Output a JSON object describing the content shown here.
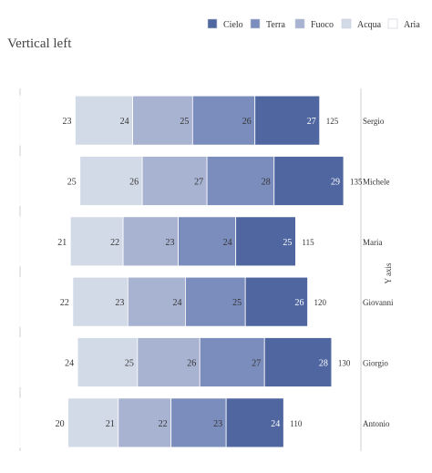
{
  "title": "Vertical left",
  "chart_data": {
    "type": "bar",
    "orientation": "horizontal-stacked",
    "title": "Vertical left",
    "ylabel": "Y axis",
    "ylabel_position": "right",
    "legend_position": "top-right",
    "categories": [
      "Sergio",
      "Michele",
      "Maria",
      "Giovanni",
      "Giorgio",
      "Antonio"
    ],
    "series": [
      {
        "name": "Aria",
        "color": "#ffffff",
        "values": [
          23,
          25,
          21,
          22,
          24,
          20
        ]
      },
      {
        "name": "Acqua",
        "color": "#d3dae7",
        "values": [
          24,
          26,
          22,
          23,
          25,
          21
        ]
      },
      {
        "name": "Fuoco",
        "color": "#a7b3d1",
        "values": [
          25,
          27,
          23,
          24,
          26,
          22
        ]
      },
      {
        "name": "Terra",
        "color": "#7b8dbd",
        "values": [
          26,
          28,
          24,
          25,
          27,
          23
        ]
      },
      {
        "name": "Cielo",
        "color": "#4f66a1",
        "values": [
          27,
          29,
          25,
          26,
          28,
          24
        ]
      }
    ],
    "legend_order": [
      "Cielo",
      "Terra",
      "Fuoco",
      "Acqua",
      "Aria"
    ],
    "totals": [
      125,
      135,
      115,
      120,
      130,
      110
    ],
    "xlim": [
      0,
      135
    ]
  }
}
